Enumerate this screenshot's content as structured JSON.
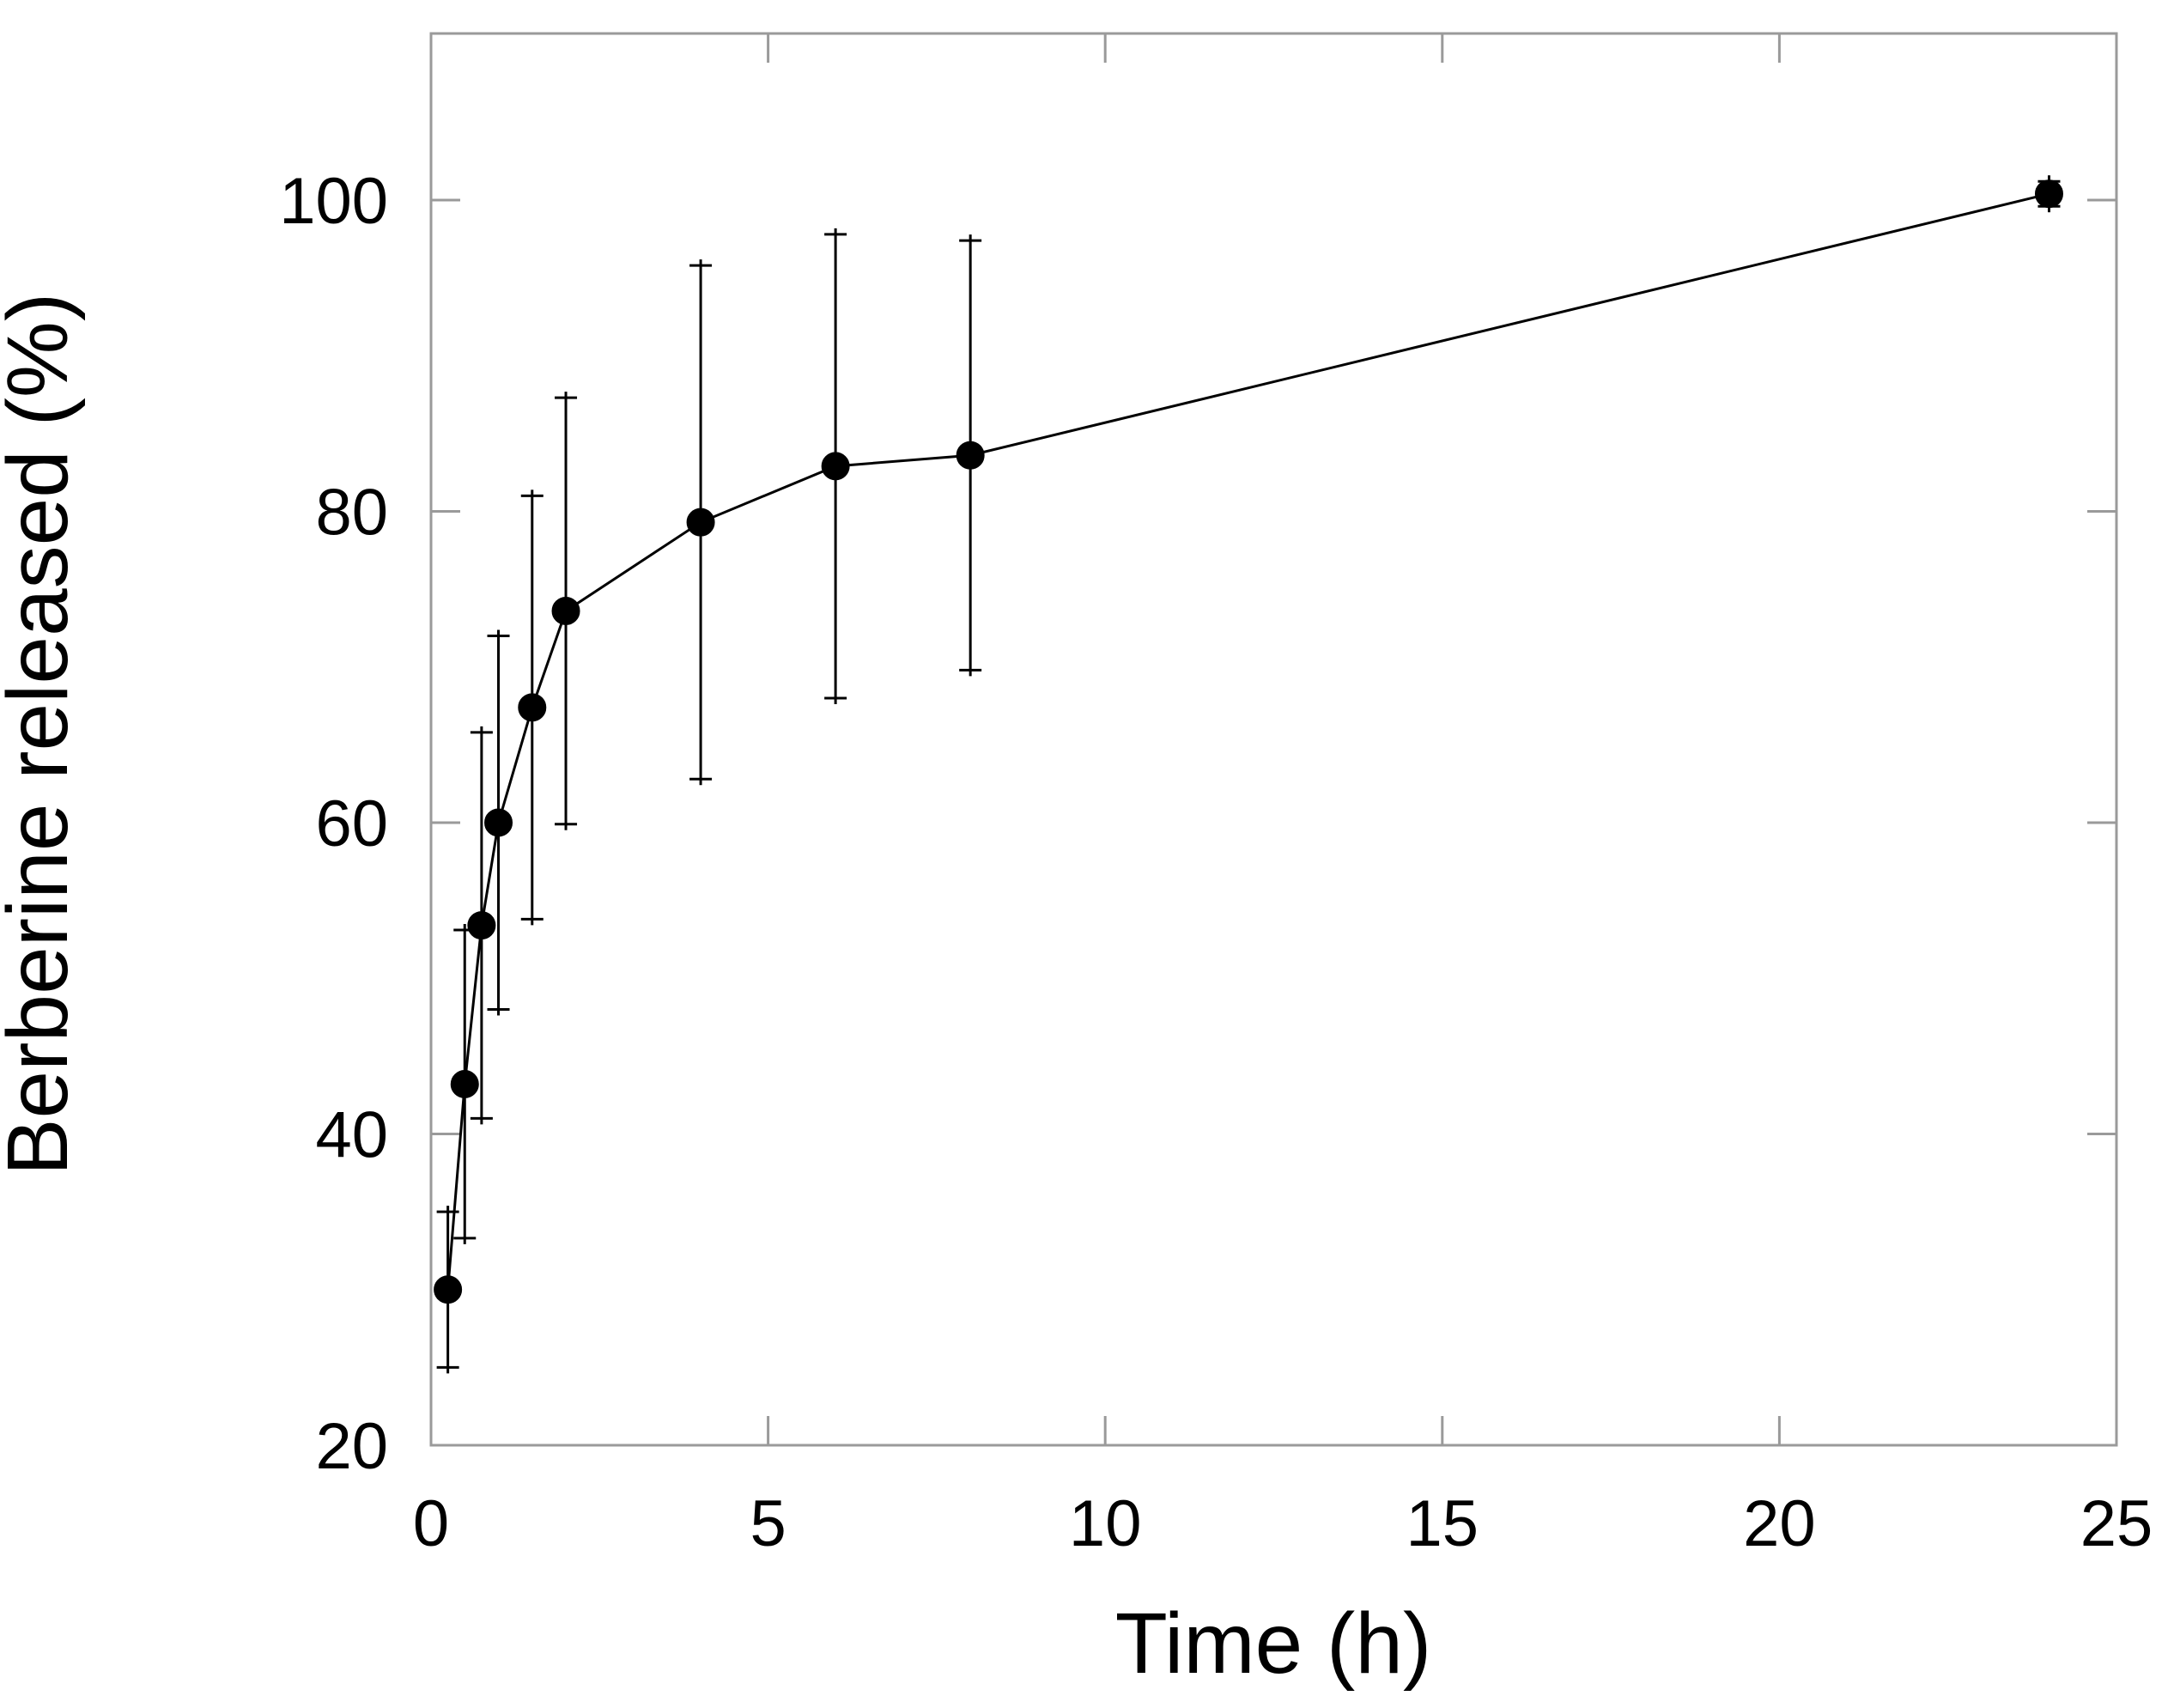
{
  "figure": {
    "background": "#ffffff",
    "data_color": "#000000",
    "frame_color": "#9a9a9a"
  },
  "chart_data": {
    "type": "line",
    "title": "",
    "xlabel": "Time (h)",
    "ylabel": "Berberine released (%)",
    "x": [
      0.25,
      0.5,
      0.75,
      1,
      1.5,
      2,
      4,
      6,
      8,
      24
    ],
    "series": [
      {
        "name": "Berberine released (%)",
        "values": [
          30.0,
          43.2,
          53.4,
          60.0,
          67.4,
          73.6,
          79.3,
          82.9,
          83.6,
          100.4
        ],
        "error": [
          5.0,
          9.9,
          12.4,
          12.0,
          13.6,
          13.7,
          16.5,
          14.9,
          13.8,
          0.8
        ],
        "marker": "filled-circle",
        "color": "#000000",
        "line_style": "solid",
        "error_bar_caps": true
      }
    ],
    "xlim": [
      0,
      25
    ],
    "ylim": [
      20,
      110.7
    ],
    "xticks": [
      0,
      5,
      10,
      15,
      20,
      25
    ],
    "yticks": [
      20,
      40,
      60,
      80,
      100
    ],
    "tick_labels_x": [
      "0",
      "5",
      "10",
      "15",
      "20",
      "25"
    ],
    "tick_labels_y": [
      "20",
      "40",
      "60",
      "80",
      "100"
    ],
    "grid": false,
    "legend": false,
    "tick_direction": "in",
    "mirrored_ticks": true
  }
}
